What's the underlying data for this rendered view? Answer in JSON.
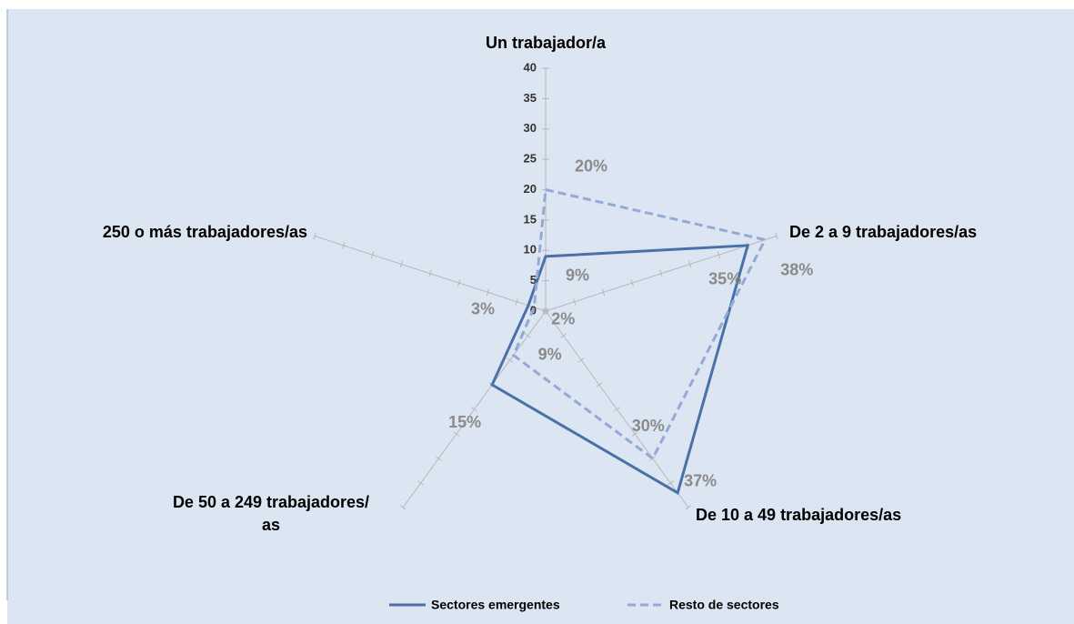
{
  "chart_data": {
    "type": "radar",
    "categories": [
      "Un trabajador/a",
      "De 2 a 9 trabajadores/as",
      "De 10 a 49 trabajadores/as",
      "De 50 a 249 trabajadores/\nas",
      "250 o más trabajadores/as"
    ],
    "series": [
      {
        "name": "Sectores emergentes",
        "color": "#4a70a8",
        "dash": false,
        "values": [
          9,
          35,
          37,
          15,
          3
        ],
        "value_labels": [
          "9%",
          "35%",
          "37%",
          "15%",
          "3%"
        ]
      },
      {
        "name": "Resto de sectores",
        "color": "#93a9d6",
        "dash": true,
        "values": [
          20,
          38,
          30,
          9,
          2
        ],
        "value_labels": [
          "20%",
          "38%",
          "30%",
          "9%",
          "2%"
        ]
      }
    ],
    "ylim": [
      0,
      40
    ],
    "yticks": [
      0,
      5,
      10,
      15,
      20,
      25,
      30,
      35,
      40
    ]
  }
}
